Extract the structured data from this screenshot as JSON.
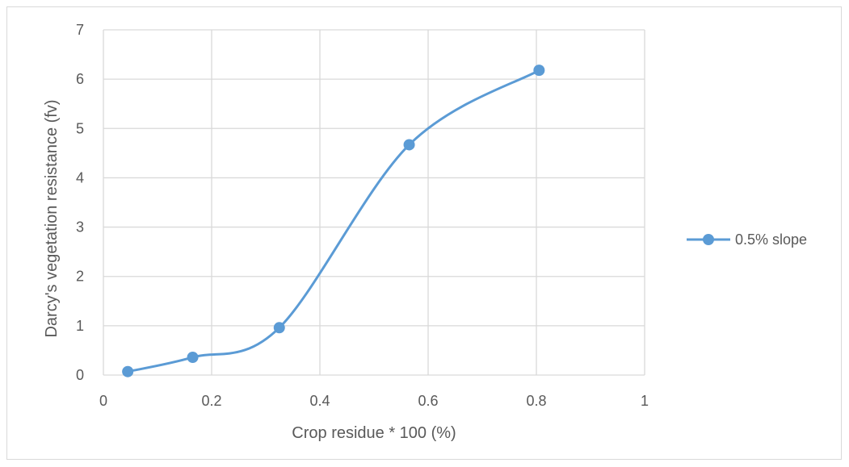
{
  "chart_data": {
    "type": "scatter",
    "xlabel": "Crop residue * 100 (%)",
    "ylabel": "Darcy's vegetation resistance (fv)",
    "xlim": [
      0,
      1
    ],
    "ylim": [
      0,
      7
    ],
    "xticks": [
      "0",
      "0.2",
      "0.4",
      "0.6",
      "0.8",
      "1"
    ],
    "yticks": [
      "0",
      "1",
      "2",
      "3",
      "4",
      "5",
      "6",
      "7"
    ],
    "grid": true,
    "legend_position": "right",
    "line_style": "smoothed-with-markers",
    "series": [
      {
        "name": "0.5% slope",
        "color": "#5b9bd5",
        "x": [
          0.045,
          0.165,
          0.325,
          0.565,
          0.805
        ],
        "y": [
          0.07,
          0.36,
          0.96,
          4.67,
          6.18
        ]
      }
    ]
  }
}
